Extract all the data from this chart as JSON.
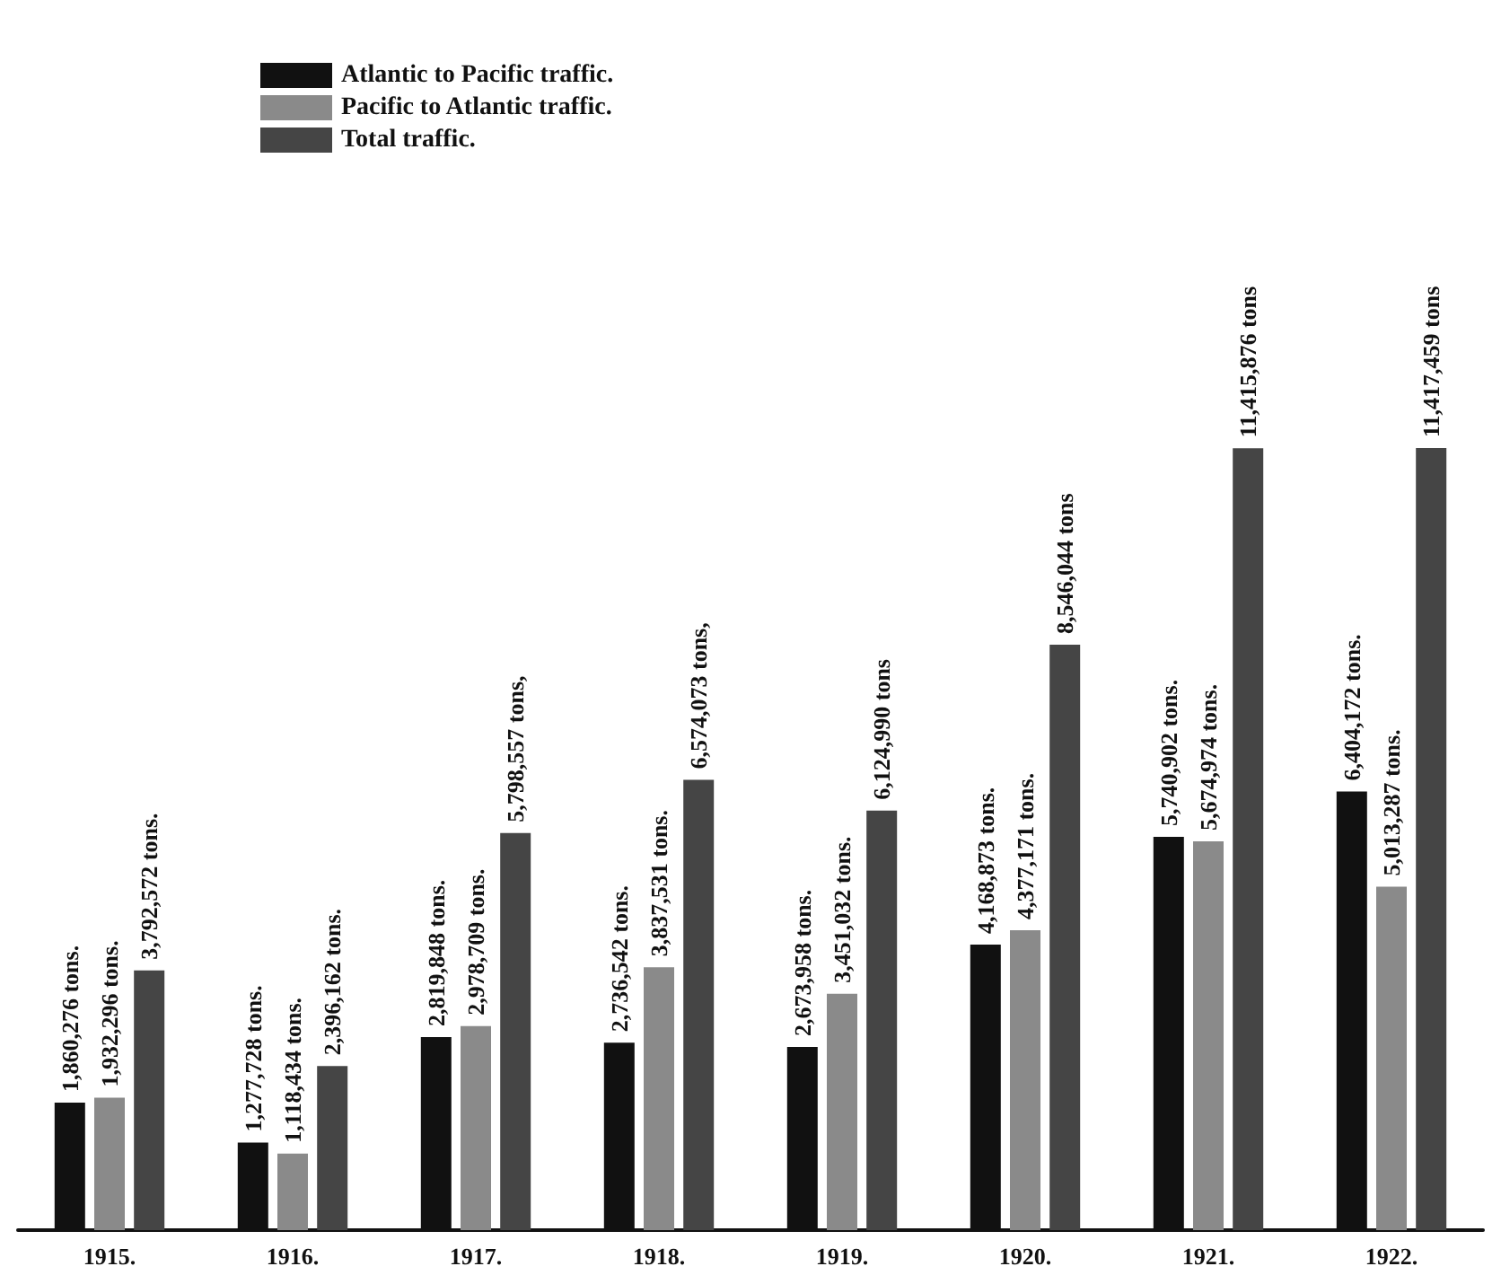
{
  "chart_data": {
    "type": "bar",
    "categories": [
      "1915.",
      "1916.",
      "1917.",
      "1918.",
      "1919.",
      "1920.",
      "1921.",
      "1922."
    ],
    "series": [
      {
        "name": "Atlantic to Pacific traffic.",
        "color": "#111111",
        "values": [
          1860276,
          1277728,
          2819848,
          2736542,
          2673958,
          4168873,
          5740902,
          6404172
        ],
        "value_labels": [
          "1,860,276 tons.",
          "1,277,728 tons.",
          "2,819,848 tons.",
          "2,736,542 tons.",
          "2,673,958 tons.",
          "4,168,873 tons.",
          "5,740,902 tons.",
          "6,404,172 tons."
        ]
      },
      {
        "name": "Pacific to Atlantic traffic.",
        "color": "#8a8a8a",
        "values": [
          1932296,
          1118434,
          2978709,
          3837531,
          3451032,
          4377171,
          5674974,
          5013287
        ],
        "value_labels": [
          "1,932,296 tons.",
          "1,118,434 tons.",
          "2,978,709 tons.",
          "3,837,531 tons.",
          "3,451,032 tons.",
          "4,377,171 tons.",
          "5,674,974 tons.",
          "5,013,287 tons."
        ]
      },
      {
        "name": "Total traffic.",
        "color": "#454545",
        "values": [
          3792572,
          2396162,
          5798557,
          6574073,
          6124990,
          8546044,
          11415876,
          11417459
        ],
        "value_labels": [
          "3,792,572 tons.",
          "2,396,162 tons.",
          "5,798,557 tons,",
          "6,574,073 tons,",
          "6,124,990 tons",
          "8,546,044 tons",
          "11,415,876 tons",
          "11,417,459 tons"
        ]
      }
    ],
    "legend": "top left",
    "grid": false
  }
}
